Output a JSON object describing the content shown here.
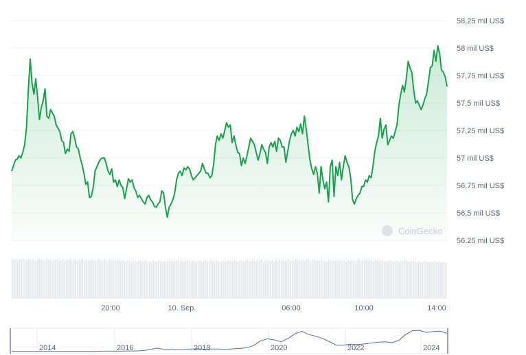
{
  "chart_data": {
    "type": "area",
    "currency_suffix": " mil US$",
    "yticks": [
      "58,25 mil US$",
      "58 mil US$",
      "57,75 mil US$",
      "57,5 mil US$",
      "57,25 mil US$",
      "57 mil US$",
      "56,75 mil US$",
      "56,5 mil US$",
      "56,25 mil US$"
    ],
    "ylim": [
      56.25,
      58.25
    ],
    "xticks": [
      "20:00",
      "10. Sep.",
      "06:00",
      "10:00",
      "14:00"
    ],
    "watermark": "CoinGecko",
    "grid": true,
    "line_color": "#16a34a",
    "series": [
      {
        "values": [
          56.88,
          56.93,
          56.98,
          56.99,
          57.02,
          57.0,
          57.05,
          57.12,
          57.28,
          57.62,
          57.9,
          57.68,
          57.58,
          57.72,
          57.55,
          57.35,
          57.46,
          57.52,
          57.63,
          57.38,
          57.36,
          57.44,
          57.41,
          57.38,
          57.3,
          57.27,
          57.24,
          57.16,
          57.14,
          57.04,
          57.08,
          57.06,
          57.22,
          57.24,
          57.18,
          57.1,
          57.08,
          57.0,
          56.94,
          56.86,
          56.76,
          56.78,
          56.64,
          56.65,
          56.73,
          56.88,
          56.92,
          56.96,
          56.99,
          57.0,
          57.0,
          56.95,
          56.88,
          56.85,
          56.9,
          56.78,
          56.8,
          56.74,
          56.8,
          56.75,
          56.73,
          56.63,
          56.72,
          56.81,
          56.78,
          56.8,
          56.73,
          56.7,
          56.64,
          56.66,
          56.63,
          56.6,
          56.58,
          56.64,
          56.66,
          56.62,
          56.6,
          56.56,
          56.55,
          56.58,
          56.6,
          56.7,
          56.68,
          56.55,
          56.46,
          56.55,
          56.58,
          56.62,
          56.68,
          56.8,
          56.86,
          56.88,
          56.84,
          56.91,
          56.89,
          56.92,
          56.9,
          56.84,
          56.8,
          56.82,
          56.84,
          56.86,
          56.88,
          56.95,
          56.9,
          56.86,
          56.86,
          56.82,
          56.84,
          56.94,
          57.12,
          57.2,
          57.16,
          57.22,
          57.18,
          57.25,
          57.32,
          57.28,
          57.3,
          57.14,
          57.2,
          57.12,
          57.05,
          57.04,
          56.93,
          57.0,
          56.95,
          57.02,
          57.1,
          57.18,
          57.15,
          57.12,
          57.05,
          56.98,
          57.04,
          57.12,
          57.08,
          57.05,
          56.95,
          57.1,
          57.14,
          57.1,
          57.15,
          57.06,
          57.18,
          57.16,
          57.1,
          57.1,
          56.96,
          57.06,
          57.16,
          57.22,
          57.25,
          57.2,
          57.28,
          57.24,
          57.31,
          57.22,
          57.38,
          57.26,
          57.12,
          56.98,
          56.9,
          56.85,
          56.92,
          56.86,
          56.68,
          56.92,
          56.8,
          56.72,
          56.78,
          56.6,
          56.92,
          56.98,
          56.65,
          56.92,
          56.84,
          56.96,
          56.8,
          56.92,
          57.02,
          56.96,
          56.92,
          56.82,
          56.62,
          56.58,
          56.63,
          56.66,
          56.68,
          56.74,
          56.74,
          56.8,
          56.78,
          56.84,
          56.82,
          56.92,
          57.06,
          57.14,
          57.2,
          57.36,
          57.18,
          57.26,
          57.3,
          57.12,
          57.16,
          57.2,
          57.18,
          57.24,
          57.3,
          57.48,
          57.58,
          57.66,
          57.6,
          57.72,
          57.88,
          57.82,
          57.78,
          57.62,
          57.5,
          57.52,
          57.48,
          57.44,
          57.48,
          57.54,
          57.58,
          57.7,
          57.82,
          57.84,
          57.98,
          57.88,
          58.02,
          57.95,
          57.8,
          57.78,
          57.74,
          57.65
        ]
      }
    ],
    "volume": [
      0.58,
      0.57,
      0.58,
      0.56,
      0.58,
      0.57,
      0.59,
      0.57,
      0.56,
      0.58,
      0.57,
      0.56,
      0.58,
      0.55,
      0.57,
      0.58,
      0.56,
      0.57,
      0.55,
      0.58,
      0.56,
      0.57,
      0.55,
      0.58,
      0.56,
      0.57,
      0.55,
      0.56,
      0.58,
      0.55,
      0.57,
      0.56,
      0.58,
      0.55,
      0.57,
      0.56,
      0.55,
      0.57,
      0.56,
      0.58,
      0.55,
      0.57,
      0.56,
      0.55,
      0.57,
      0.56,
      0.55,
      0.56,
      0.57,
      0.55,
      0.56,
      0.57,
      0.55,
      0.56,
      0.57,
      0.55,
      0.56,
      0.55,
      0.57,
      0.56,
      0.55,
      0.56,
      0.55,
      0.54,
      0.56,
      0.55,
      0.54,
      0.56,
      0.55,
      0.54,
      0.55,
      0.56,
      0.54,
      0.55,
      0.56,
      0.54,
      0.55,
      0.54,
      0.56,
      0.55,
      0.54,
      0.55,
      0.56,
      0.54,
      0.55,
      0.54,
      0.55,
      0.56,
      0.54,
      0.55,
      0.54,
      0.55,
      0.56,
      0.54,
      0.55,
      0.54,
      0.55,
      0.56,
      0.55,
      0.54,
      0.56,
      0.55,
      0.54,
      0.55,
      0.56,
      0.54,
      0.55,
      0.56,
      0.54,
      0.55,
      0.56,
      0.55,
      0.54,
      0.56,
      0.55,
      0.54,
      0.55,
      0.56,
      0.54,
      0.55,
      0.56,
      0.55,
      0.54,
      0.56,
      0.55,
      0.54,
      0.56,
      0.55,
      0.54,
      0.55,
      0.56,
      0.55,
      0.54,
      0.56,
      0.55,
      0.54,
      0.56,
      0.55,
      0.57,
      0.54,
      0.56,
      0.55,
      0.57,
      0.55,
      0.56,
      0.54,
      0.56,
      0.55,
      0.57,
      0.55,
      0.56,
      0.54,
      0.56,
      0.57,
      0.55,
      0.56,
      0.55,
      0.57,
      0.55,
      0.56,
      0.54,
      0.56,
      0.55,
      0.57,
      0.56,
      0.55,
      0.56,
      0.57,
      0.55,
      0.56,
      0.55,
      0.57,
      0.55,
      0.56,
      0.55,
      0.57,
      0.56,
      0.55,
      0.56,
      0.54,
      0.56,
      0.55,
      0.57,
      0.55,
      0.56,
      0.54,
      0.56,
      0.55,
      0.57,
      0.56,
      0.55,
      0.56,
      0.57,
      0.55,
      0.56,
      0.55,
      0.57,
      0.55,
      0.56,
      0.55,
      0.54,
      0.56,
      0.55,
      0.54,
      0.55,
      0.56,
      0.54,
      0.55,
      0.54,
      0.56,
      0.55,
      0.54,
      0.55,
      0.56,
      0.54,
      0.55,
      0.54,
      0.55,
      0.56,
      0.54,
      0.55,
      0.54,
      0.55,
      0.54,
      0.53,
      0.55,
      0.54,
      0.53,
      0.54,
      0.55,
      0.53,
      0.54,
      0.53,
      0.54,
      0.55,
      0.53,
      0.54,
      0.53,
      0.54,
      0.53,
      0.52
    ],
    "navigator": {
      "years": [
        "2014",
        "2016",
        "2018",
        "2020",
        "2022",
        "2024"
      ],
      "overview": [
        0.01,
        0.01,
        0.01,
        0.01,
        0.01,
        0.01,
        0.01,
        0.01,
        0.01,
        0.01,
        0.01,
        0.01,
        0.01,
        0.02,
        0.02,
        0.02,
        0.02,
        0.03,
        0.03,
        0.05,
        0.09,
        0.16,
        0.11,
        0.1,
        0.09,
        0.09,
        0.12,
        0.13,
        0.11,
        0.12,
        0.12,
        0.1,
        0.13,
        0.15,
        0.18,
        0.28,
        0.5,
        0.6,
        0.55,
        0.46,
        0.62,
        0.84,
        0.95,
        0.8,
        0.72,
        0.62,
        0.46,
        0.3,
        0.3,
        0.35,
        0.33,
        0.36,
        0.4,
        0.44,
        0.46,
        0.42,
        0.52,
        0.8,
        0.98,
        1.0,
        0.9,
        0.94,
        0.96,
        0.86
      ]
    }
  }
}
